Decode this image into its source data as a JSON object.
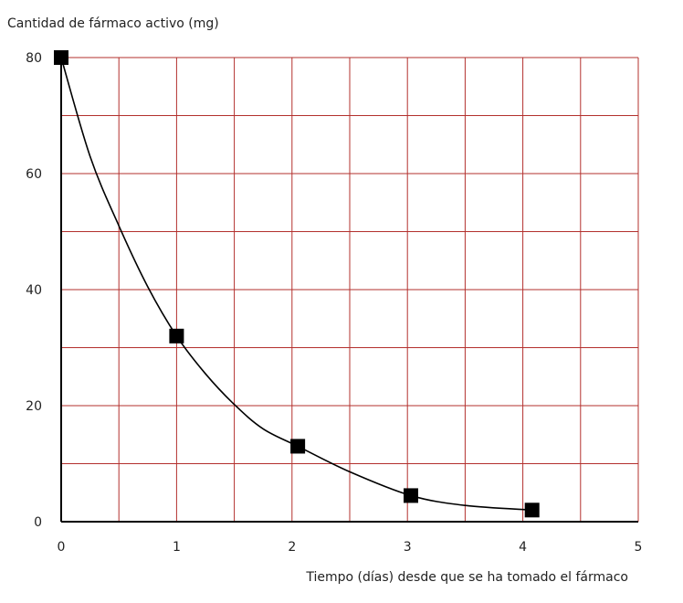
{
  "chart_data": {
    "type": "scatter",
    "title": "",
    "ylabel": "Cantidad de fármaco activo (mg)",
    "xlabel": "Tiempo (días) desde que se ha tomado el fármaco",
    "xlim": [
      0,
      5
    ],
    "ylim": [
      0,
      80
    ],
    "x_ticks": [
      0,
      1,
      2,
      3,
      4,
      5
    ],
    "y_ticks": [
      0,
      20,
      40,
      60,
      80
    ],
    "x_grid_step": 0.5,
    "y_grid_step": 10,
    "grid": true,
    "grid_color": "#b3302d",
    "marker_color": "#000000",
    "line_color": "#000000",
    "marker": "square",
    "points": [
      {
        "x": 0,
        "y": 80
      },
      {
        "x": 1,
        "y": 32
      },
      {
        "x": 2.05,
        "y": 13
      },
      {
        "x": 3.03,
        "y": 4.5
      },
      {
        "x": 4.08,
        "y": 2
      }
    ],
    "curve": [
      [
        0,
        80
      ],
      [
        0.25,
        63
      ],
      [
        0.5,
        51
      ],
      [
        0.75,
        40.5
      ],
      [
        1,
        32
      ],
      [
        1.25,
        25.5
      ],
      [
        1.5,
        20.2
      ],
      [
        1.75,
        16
      ],
      [
        2.05,
        13
      ],
      [
        2.5,
        8.6
      ],
      [
        3.03,
        4.5
      ],
      [
        3.5,
        2.8
      ],
      [
        4.08,
        2
      ]
    ]
  }
}
